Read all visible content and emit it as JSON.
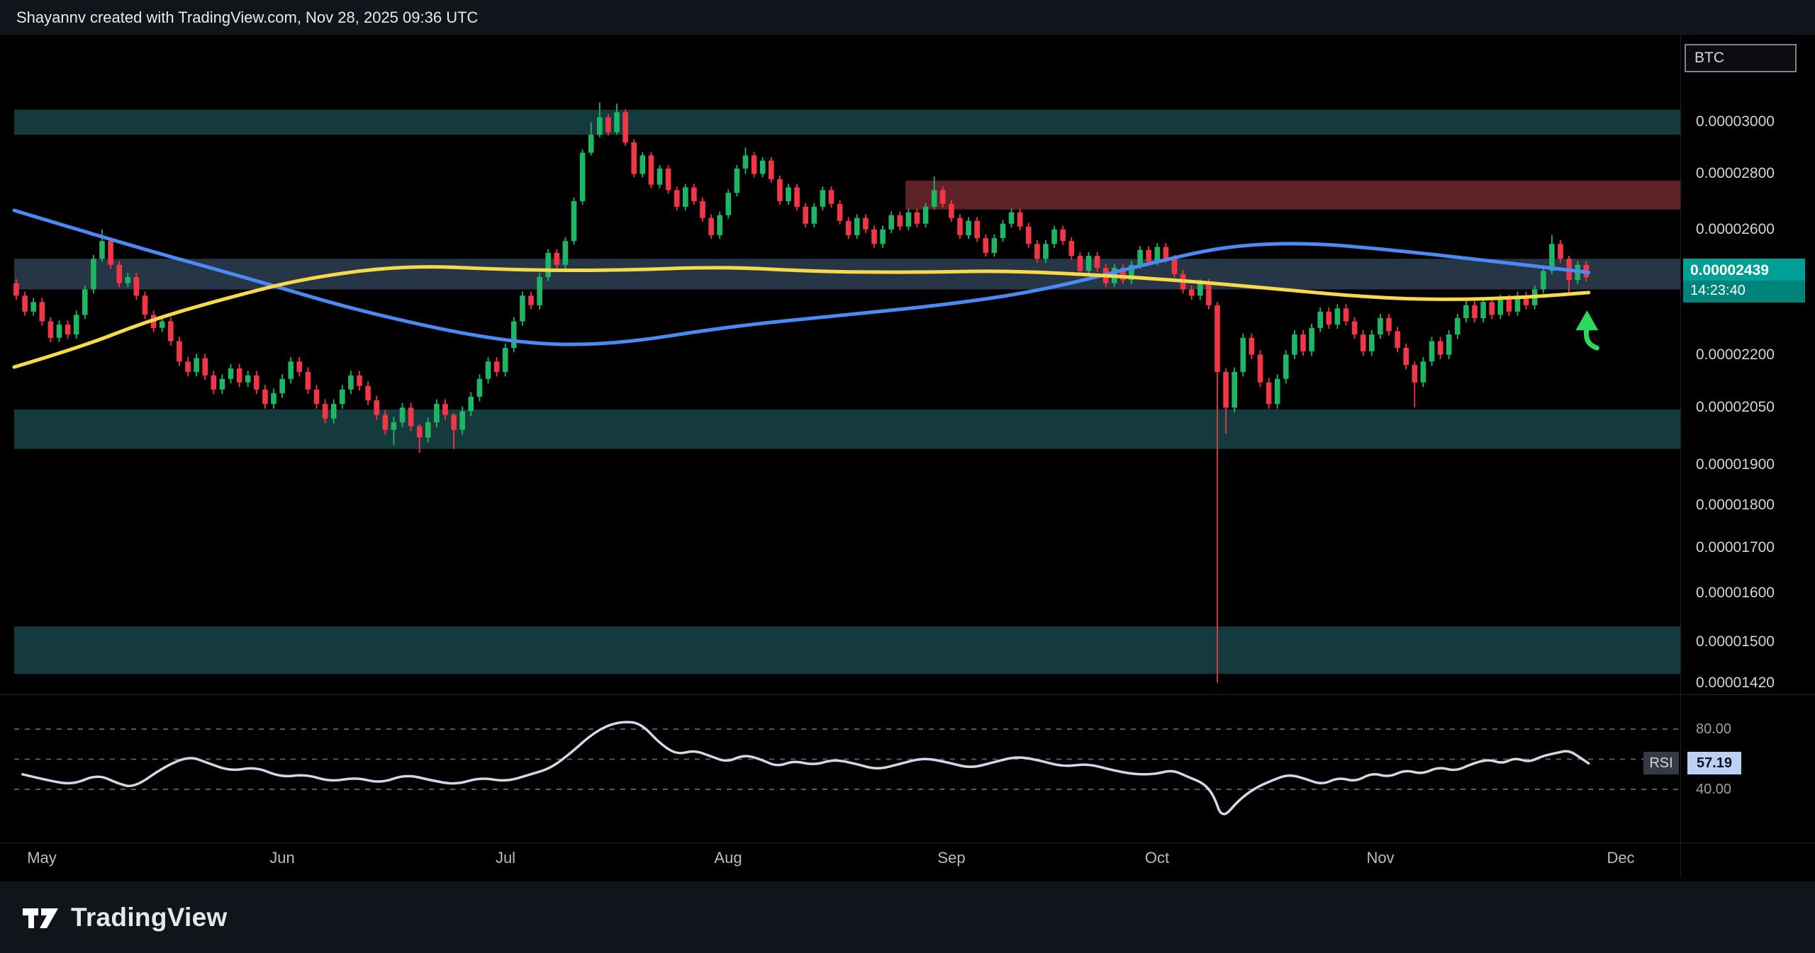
{
  "topbar": {
    "attribution": "Shayannv created with TradingView.com, Nov 28, 2025 09:36 UTC"
  },
  "price_scale": {
    "currency": "BTC",
    "labels": [
      {
        "text": "0.00003000",
        "value": 3000
      },
      {
        "text": "0.00002800",
        "value": 2800
      },
      {
        "text": "0.00002600",
        "value": 2600
      },
      {
        "text": "0.00002200",
        "value": 2200
      },
      {
        "text": "0.00002050",
        "value": 2050
      },
      {
        "text": "0.00001900",
        "value": 1900
      },
      {
        "text": "0.00001800",
        "value": 1800
      },
      {
        "text": "0.00001700",
        "value": 1700
      },
      {
        "text": "0.00001600",
        "value": 1600
      },
      {
        "text": "0.00001500",
        "value": 1500
      },
      {
        "text": "0.00001420",
        "value": 1420
      }
    ],
    "current": {
      "price_text": "0.00002439",
      "price": 2439,
      "countdown": "14:23:40"
    }
  },
  "time_scale": {
    "months": [
      {
        "label": "May",
        "i": 3
      },
      {
        "label": "Jun",
        "i": 31
      },
      {
        "label": "Jul",
        "i": 57
      },
      {
        "label": "Aug",
        "i": 83
      },
      {
        "label": "Sep",
        "i": 109
      },
      {
        "label": "Oct",
        "i": 133
      },
      {
        "label": "Nov",
        "i": 159
      },
      {
        "label": "Dec",
        "i": 187
      }
    ]
  },
  "rsi": {
    "name": "RSI",
    "value_text": "57.19",
    "value": 57.19,
    "levels": [
      {
        "text": "80.00",
        "value": 80
      },
      {
        "text": "40.00",
        "value": 40
      }
    ],
    "gridlines": [
      80,
      60,
      40
    ]
  },
  "footer": {
    "brand": "TradingView"
  },
  "colors": {
    "background": "#000000",
    "bar_background": "#11141a",
    "candle_up": "#1eb564",
    "candle_down": "#f23645",
    "ma_yellow": "#f8d94a",
    "ma_blue": "#4a8af4",
    "rsi_line": "#d5d7e8",
    "rsi_grid": "#565a66",
    "zone_teal": "#143a3d",
    "zone_slate": "#263646",
    "zone_red": "#5e2127",
    "current_label_bg": "#00a097",
    "arrow_green": "#2bd95f",
    "axis_text": "#d1d4dc"
  },
  "chart_data": {
    "type": "candlestick",
    "title": "",
    "quote_currency": "BTC",
    "price_scale_factor": 1e-08,
    "scale": "log",
    "price_axis_range": [
      1405,
      3370
    ],
    "x_range": [
      "May",
      "Dec"
    ],
    "last_price": 2439,
    "first_open": 2420,
    "closes": [
      2380,
      2330,
      2360,
      2300,
      2250,
      2290,
      2260,
      2320,
      2400,
      2500,
      2560,
      2480,
      2420,
      2440,
      2380,
      2320,
      2280,
      2300,
      2240,
      2180,
      2150,
      2190,
      2140,
      2100,
      2130,
      2160,
      2120,
      2140,
      2100,
      2060,
      2090,
      2130,
      2180,
      2150,
      2100,
      2060,
      2020,
      2060,
      2100,
      2140,
      2110,
      2070,
      2030,
      1990,
      2010,
      2050,
      2000,
      1970,
      2010,
      2060,
      2030,
      1990,
      2040,
      2080,
      2130,
      2180,
      2150,
      2220,
      2300,
      2380,
      2350,
      2440,
      2520,
      2480,
      2560,
      2700,
      2880,
      2950,
      3020,
      2960,
      3040,
      2920,
      2800,
      2870,
      2760,
      2820,
      2740,
      2680,
      2750,
      2700,
      2640,
      2580,
      2650,
      2730,
      2820,
      2870,
      2800,
      2850,
      2780,
      2700,
      2750,
      2680,
      2620,
      2680,
      2740,
      2690,
      2630,
      2580,
      2640,
      2600,
      2550,
      2600,
      2650,
      2610,
      2660,
      2620,
      2680,
      2740,
      2690,
      2640,
      2580,
      2630,
      2570,
      2520,
      2570,
      2620,
      2660,
      2610,
      2550,
      2500,
      2550,
      2600,
      2560,
      2510,
      2460,
      2510,
      2470,
      2420,
      2470,
      2430,
      2480,
      2530,
      2490,
      2540,
      2500,
      2450,
      2400,
      2380,
      2420,
      2350,
      2150,
      2050,
      2150,
      2250,
      2200,
      2120,
      2060,
      2130,
      2200,
      2260,
      2210,
      2280,
      2330,
      2290,
      2340,
      2300,
      2260,
      2210,
      2260,
      2310,
      2270,
      2220,
      2170,
      2120,
      2180,
      2240,
      2200,
      2260,
      2310,
      2350,
      2310,
      2360,
      2320,
      2370,
      2330,
      2380,
      2350,
      2400,
      2460,
      2550,
      2500,
      2430,
      2480,
      2439
    ],
    "wick_overrides": {
      "10": [
        2600,
        2490
      ],
      "44": [
        2025,
        1950
      ],
      "47": [
        2005,
        1930
      ],
      "51": [
        2035,
        1940
      ],
      "67": [
        3000,
        2870
      ],
      "68": [
        3080,
        2940
      ],
      "70": [
        3075,
        2950
      ],
      "85": [
        2900,
        2800
      ],
      "107": [
        2790,
        2670
      ],
      "140": [
        2360,
        1420
      ],
      "141": [
        2160,
        1980
      ],
      "163": [
        2180,
        2050
      ],
      "179": [
        2580,
        2450
      ],
      "181": [
        2510,
        2390
      ]
    },
    "zones": [
      {
        "name": "resistance-zone-3000",
        "price_top": 3050,
        "price_bottom": 2950,
        "color": "#143a3d",
        "x_start_frac": 0
      },
      {
        "name": "supply-zone-2700",
        "price_top": 2775,
        "price_bottom": 2670,
        "color": "#5e2127",
        "x_start_frac": 0.535
      },
      {
        "name": "current-price-zone-2450",
        "price_top": 2500,
        "price_bottom": 2400,
        "color": "#263646",
        "x_start_frac": 0
      },
      {
        "name": "support-zone-2000",
        "price_top": 2045,
        "price_bottom": 1940,
        "color": "#143a3d",
        "x_start_frac": 0
      },
      {
        "name": "deep-support-zone-1500",
        "price_top": 1531,
        "price_bottom": 1437,
        "color": "#143a3d",
        "x_start_frac": 0
      }
    ],
    "ma_yellow": [
      [
        0,
        2164
      ],
      [
        0.04,
        2222
      ],
      [
        0.08,
        2301
      ],
      [
        0.125,
        2369
      ],
      [
        0.175,
        2437
      ],
      [
        0.235,
        2479
      ],
      [
        0.3,
        2463
      ],
      [
        0.36,
        2461
      ],
      [
        0.425,
        2474
      ],
      [
        0.48,
        2458
      ],
      [
        0.54,
        2455
      ],
      [
        0.595,
        2461
      ],
      [
        0.655,
        2445
      ],
      [
        0.71,
        2425
      ],
      [
        0.76,
        2400
      ],
      [
        0.815,
        2374
      ],
      [
        0.86,
        2367
      ],
      [
        0.905,
        2374
      ],
      [
        0.945,
        2390
      ]
    ],
    "ma_blue": [
      [
        0,
        2667
      ],
      [
        0.07,
        2544
      ],
      [
        0.14,
        2437
      ],
      [
        0.21,
        2327
      ],
      [
        0.295,
        2236
      ],
      [
        0.355,
        2226
      ],
      [
        0.43,
        2285
      ],
      [
        0.5,
        2320
      ],
      [
        0.565,
        2355
      ],
      [
        0.62,
        2400
      ],
      [
        0.69,
        2497
      ],
      [
        0.73,
        2544
      ],
      [
        0.775,
        2555
      ],
      [
        0.825,
        2531
      ],
      [
        0.88,
        2497
      ],
      [
        0.945,
        2455
      ]
    ],
    "rsi_series": [
      [
        0.005,
        50
      ],
      [
        0.02,
        46
      ],
      [
        0.035,
        43
      ],
      [
        0.05,
        50
      ],
      [
        0.062,
        44
      ],
      [
        0.072,
        41
      ],
      [
        0.09,
        55
      ],
      [
        0.105,
        62
      ],
      [
        0.115,
        58
      ],
      [
        0.13,
        52
      ],
      [
        0.145,
        55
      ],
      [
        0.16,
        48
      ],
      [
        0.175,
        50
      ],
      [
        0.19,
        45
      ],
      [
        0.205,
        48
      ],
      [
        0.22,
        44
      ],
      [
        0.235,
        50
      ],
      [
        0.25,
        46
      ],
      [
        0.265,
        43
      ],
      [
        0.28,
        48
      ],
      [
        0.295,
        45
      ],
      [
        0.31,
        50
      ],
      [
        0.322,
        54
      ],
      [
        0.335,
        65
      ],
      [
        0.345,
        75
      ],
      [
        0.355,
        82
      ],
      [
        0.365,
        85
      ],
      [
        0.376,
        84
      ],
      [
        0.388,
        70
      ],
      [
        0.398,
        63
      ],
      [
        0.408,
        66
      ],
      [
        0.418,
        62
      ],
      [
        0.428,
        58
      ],
      [
        0.438,
        63
      ],
      [
        0.448,
        60
      ],
      [
        0.458,
        55
      ],
      [
        0.468,
        59
      ],
      [
        0.48,
        56
      ],
      [
        0.492,
        60
      ],
      [
        0.505,
        57
      ],
      [
        0.518,
        53
      ],
      [
        0.532,
        57
      ],
      [
        0.546,
        61
      ],
      [
        0.56,
        58
      ],
      [
        0.574,
        54
      ],
      [
        0.588,
        58
      ],
      [
        0.602,
        62
      ],
      [
        0.616,
        59
      ],
      [
        0.63,
        55
      ],
      [
        0.644,
        57
      ],
      [
        0.658,
        53
      ],
      [
        0.672,
        50
      ],
      [
        0.685,
        50
      ],
      [
        0.695,
        53
      ],
      [
        0.705,
        48
      ],
      [
        0.714,
        44
      ],
      [
        0.72,
        36
      ],
      [
        0.725,
        20
      ],
      [
        0.735,
        33
      ],
      [
        0.745,
        41
      ],
      [
        0.755,
        46
      ],
      [
        0.765,
        50
      ],
      [
        0.775,
        47
      ],
      [
        0.785,
        43
      ],
      [
        0.795,
        48
      ],
      [
        0.805,
        45
      ],
      [
        0.815,
        51
      ],
      [
        0.825,
        48
      ],
      [
        0.835,
        53
      ],
      [
        0.845,
        50
      ],
      [
        0.855,
        55
      ],
      [
        0.865,
        52
      ],
      [
        0.875,
        57
      ],
      [
        0.885,
        60
      ],
      [
        0.893,
        57
      ],
      [
        0.901,
        61
      ],
      [
        0.909,
        58
      ],
      [
        0.917,
        62
      ],
      [
        0.925,
        64
      ],
      [
        0.933,
        66
      ],
      [
        0.94,
        61
      ],
      [
        0.945,
        57.2
      ]
    ],
    "annotations": [
      {
        "type": "up-arrow",
        "x_frac": 0.944,
        "price": 2290,
        "color": "#2bd95f"
      }
    ]
  }
}
